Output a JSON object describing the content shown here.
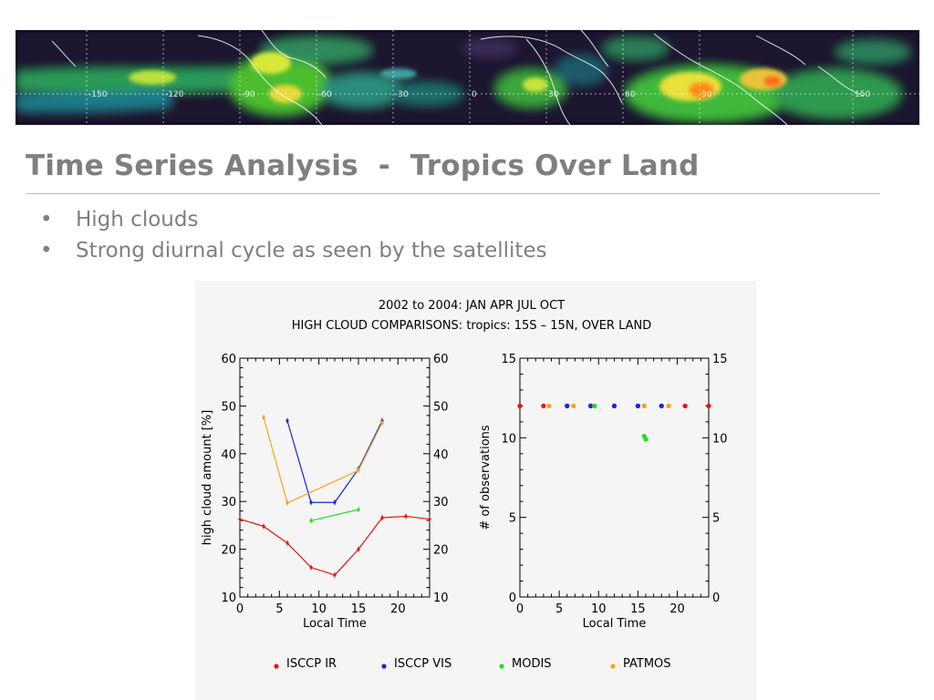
{
  "slide": {
    "title": "Time Series Analysis  -  Tropics Over Land",
    "bullets": [
      "High clouds",
      "Strong diurnal cycle as seen by the satellites"
    ]
  },
  "banner": {
    "longitude_labels": [
      "-150",
      "-120",
      "-90",
      "-60",
      "-30",
      "0",
      "30",
      "60",
      "90",
      "150"
    ]
  },
  "chart_data": [
    {
      "type": "line",
      "title": "2002 to 2004: JAN APR JUL OCT",
      "subtitle": "HIGH CLOUD COMPARISONS: tropics: 15S – 15N, OVER LAND",
      "xlabel": "Local Time",
      "ylabel": "high cloud amount [%]",
      "xlim": [
        0,
        24
      ],
      "ylim": [
        10,
        60
      ],
      "x_ticks": [
        "0",
        "5",
        "10",
        "15",
        "20"
      ],
      "y_ticks": [
        "10",
        "20",
        "30",
        "40",
        "50",
        "60"
      ],
      "series": [
        {
          "name": "ISCCP IR",
          "color": "#e8140c",
          "x": [
            0,
            3,
            6,
            9,
            12,
            15,
            18,
            21,
            24
          ],
          "y": [
            26.3,
            24.8,
            21.3,
            16.2,
            14.6,
            20.0,
            26.6,
            26.9,
            26.3
          ]
        },
        {
          "name": "ISCCP VIS",
          "color": "#1428d8",
          "x": [
            6,
            9,
            12,
            15,
            18
          ],
          "y": [
            46.9,
            29.8,
            29.8,
            36.8,
            46.9
          ]
        },
        {
          "name": "MODIS",
          "color": "#22dd22",
          "x": [
            9,
            15
          ],
          "y": [
            26.0,
            28.3
          ]
        },
        {
          "name": "PATMOS",
          "color": "#f5a418",
          "x": [
            3,
            6,
            15,
            18
          ],
          "y": [
            47.6,
            29.7,
            36.5,
            46.5
          ]
        }
      ]
    },
    {
      "type": "scatter",
      "xlabel": "Local Time",
      "ylabel": "# of observations",
      "xlim": [
        0,
        24
      ],
      "ylim": [
        0,
        15
      ],
      "x_ticks": [
        "0",
        "5",
        "10",
        "15",
        "20"
      ],
      "y_ticks": [
        "0",
        "5",
        "10",
        "15"
      ],
      "series": [
        {
          "name": "ISCCP IR",
          "color": "#e8140c",
          "x": [
            0,
            3,
            6,
            9,
            12,
            15,
            18,
            21,
            24
          ],
          "y": [
            12,
            12,
            12,
            12,
            12,
            12,
            12,
            12,
            12
          ]
        },
        {
          "name": "ISCCP VIS",
          "color": "#1428d8",
          "x": [
            6,
            9,
            12,
            15,
            18
          ],
          "y": [
            12,
            12,
            12,
            12,
            12
          ]
        },
        {
          "name": "MODIS",
          "color": "#22dd22",
          "x": [
            9.5,
            15.8,
            16
          ],
          "y": [
            12,
            10.1,
            9.9
          ]
        },
        {
          "name": "PATMOS",
          "color": "#f5a418",
          "x": [
            3.7,
            6.8,
            15.8,
            18.9
          ],
          "y": [
            12,
            12,
            12,
            12
          ]
        }
      ]
    }
  ]
}
